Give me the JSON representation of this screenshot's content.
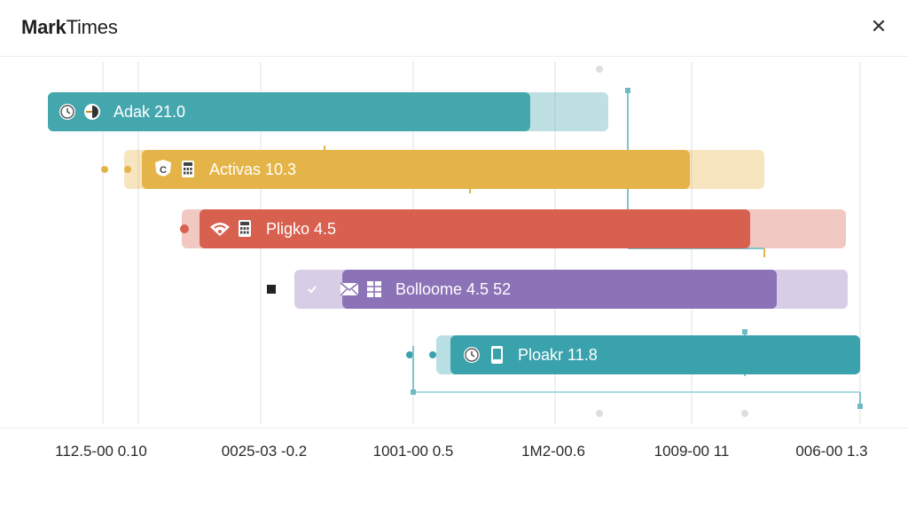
{
  "window": {
    "title_bold": "Mark",
    "title_rest": "Times",
    "close_glyph": "✕"
  },
  "timeline": {
    "tracks": [
      {
        "label": "Adak 21.0",
        "color": "#45a7ae",
        "icons": [
          "clock-icon",
          "half-circle-icon"
        ]
      },
      {
        "label": "Activas 10.3",
        "color": "#e4b448",
        "icons": [
          "shield-icon",
          "calculator-icon"
        ]
      },
      {
        "label": "Pligko 4.5",
        "color": "#d8604f",
        "icons": [
          "wifi-icon",
          "calculator-icon"
        ]
      },
      {
        "label": "Bolloome 4.5 52",
        "color": "#8c72b6",
        "icons": [
          "mail-icon",
          "grid-icon"
        ]
      },
      {
        "label": "Ploakr 11.8",
        "color": "#3aa2ac",
        "icons": [
          "clock-icon",
          "phone-icon"
        ]
      }
    ],
    "axis_labels": [
      "112.5-00 0.10",
      "0025-03 -0.2",
      "1001-00 0.5",
      "1M2-00.6",
      "1009-00 11",
      "006-00 1.3"
    ]
  }
}
